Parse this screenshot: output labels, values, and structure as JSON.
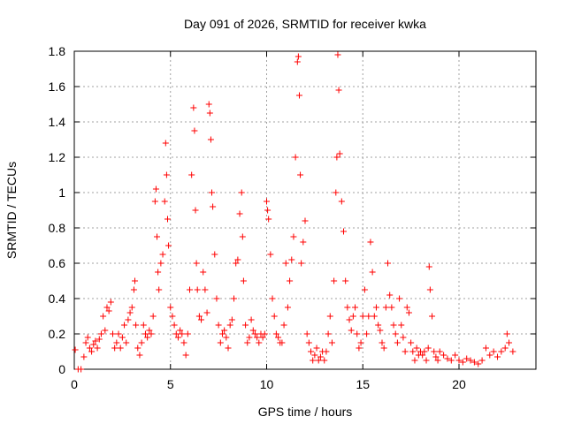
{
  "chart_data": {
    "type": "scatter",
    "title": "Day 091 of 2026, SRMTID for receiver kwka",
    "xlabel": "GPS time / hours",
    "ylabel": "SRMTID / TECUs",
    "xlim": [
      0,
      24
    ],
    "ylim": [
      0,
      1.8
    ],
    "xticks": [
      0,
      5,
      10,
      15,
      20
    ],
    "xtick_labels": [
      "0",
      "5",
      "10",
      "15",
      "20"
    ],
    "yticks": [
      0,
      0.2,
      0.4,
      0.6,
      0.8,
      1.0,
      1.2,
      1.4,
      1.6,
      1.8
    ],
    "ytick_labels": [
      "0",
      "0.2",
      "0.4",
      "0.6",
      "0.8",
      "1",
      "1.2",
      "1.4",
      "1.6",
      "1.8"
    ],
    "grid": true,
    "marker": "+",
    "color": "#ff0000",
    "series": [
      {
        "name": "SRMTID",
        "x": [
          0.05,
          0.2,
          0.35,
          0.5,
          0.6,
          0.7,
          0.8,
          0.9,
          1.0,
          1.1,
          1.2,
          1.3,
          1.4,
          1.5,
          1.6,
          1.7,
          1.8,
          1.9,
          2.0,
          2.1,
          2.2,
          2.3,
          2.4,
          2.5,
          2.6,
          2.7,
          2.8,
          2.9,
          3.0,
          3.1,
          3.15,
          3.2,
          3.3,
          3.4,
          3.5,
          3.6,
          3.7,
          3.8,
          3.9,
          4.0,
          4.1,
          4.2,
          4.25,
          4.3,
          4.35,
          4.4,
          4.5,
          4.6,
          4.7,
          4.75,
          4.8,
          4.85,
          4.9,
          5.0,
          5.1,
          5.2,
          5.3,
          5.4,
          5.5,
          5.6,
          5.7,
          5.8,
          5.9,
          6.0,
          6.1,
          6.2,
          6.25,
          6.3,
          6.35,
          6.4,
          6.5,
          6.6,
          6.7,
          6.8,
          6.9,
          7.0,
          7.05,
          7.1,
          7.15,
          7.2,
          7.3,
          7.4,
          7.5,
          7.6,
          7.7,
          7.8,
          7.9,
          8.0,
          8.1,
          8.2,
          8.3,
          8.4,
          8.5,
          8.6,
          8.7,
          8.75,
          8.8,
          8.9,
          9.0,
          9.1,
          9.2,
          9.3,
          9.4,
          9.5,
          9.6,
          9.7,
          9.8,
          9.9,
          10.0,
          10.05,
          10.1,
          10.2,
          10.3,
          10.4,
          10.5,
          10.6,
          10.7,
          10.8,
          10.9,
          11.0,
          11.1,
          11.2,
          11.3,
          11.4,
          11.5,
          11.6,
          11.65,
          11.7,
          11.75,
          11.8,
          11.9,
          12.0,
          12.1,
          12.2,
          12.3,
          12.4,
          12.5,
          12.6,
          12.7,
          12.8,
          12.9,
          13.0,
          13.1,
          13.2,
          13.3,
          13.4,
          13.5,
          13.6,
          13.65,
          13.7,
          13.75,
          13.8,
          13.9,
          14.0,
          14.1,
          14.2,
          14.3,
          14.4,
          14.5,
          14.6,
          14.7,
          14.8,
          14.9,
          15.0,
          15.1,
          15.2,
          15.3,
          15.4,
          15.5,
          15.6,
          15.7,
          15.8,
          15.9,
          16.0,
          16.1,
          16.2,
          16.3,
          16.4,
          16.5,
          16.6,
          16.7,
          16.8,
          16.9,
          17.0,
          17.1,
          17.2,
          17.3,
          17.4,
          17.5,
          17.6,
          17.7,
          17.8,
          17.9,
          18.0,
          18.1,
          18.2,
          18.3,
          18.4,
          18.45,
          18.5,
          18.6,
          18.7,
          18.8,
          18.9,
          19.0,
          19.2,
          19.4,
          19.6,
          19.8,
          20.0,
          20.2,
          20.4,
          20.6,
          20.8,
          21.0,
          21.2,
          21.4,
          21.6,
          21.8,
          22.0,
          22.2,
          22.4,
          22.5,
          22.6,
          22.8
        ],
        "y": [
          0.11,
          0.0,
          0.0,
          0.07,
          0.15,
          0.18,
          0.12,
          0.1,
          0.14,
          0.16,
          0.12,
          0.17,
          0.2,
          0.3,
          0.22,
          0.35,
          0.33,
          0.38,
          0.2,
          0.12,
          0.15,
          0.2,
          0.12,
          0.18,
          0.25,
          0.15,
          0.28,
          0.32,
          0.35,
          0.45,
          0.5,
          0.25,
          0.12,
          0.08,
          0.15,
          0.25,
          0.2,
          0.18,
          0.22,
          0.2,
          0.3,
          0.95,
          1.02,
          0.75,
          0.55,
          0.45,
          0.6,
          0.65,
          0.95,
          1.28,
          1.1,
          0.85,
          0.7,
          0.35,
          0.3,
          0.25,
          0.2,
          0.18,
          0.22,
          0.2,
          0.15,
          0.08,
          0.2,
          0.45,
          1.1,
          1.48,
          1.35,
          0.9,
          0.6,
          0.45,
          0.3,
          0.28,
          0.55,
          0.45,
          0.32,
          1.5,
          1.45,
          1.3,
          1.0,
          0.92,
          0.65,
          0.4,
          0.25,
          0.15,
          0.2,
          0.22,
          0.18,
          0.12,
          0.25,
          0.28,
          0.4,
          0.6,
          0.62,
          0.88,
          1.0,
          0.75,
          0.5,
          0.25,
          0.15,
          0.18,
          0.28,
          0.22,
          0.2,
          0.18,
          0.15,
          0.2,
          0.18,
          0.2,
          0.95,
          0.9,
          0.85,
          0.65,
          0.4,
          0.3,
          0.2,
          0.18,
          0.15,
          0.15,
          0.25,
          0.6,
          0.35,
          0.5,
          0.62,
          0.75,
          1.2,
          1.74,
          1.77,
          1.55,
          1.1,
          0.6,
          0.72,
          0.84,
          0.2,
          0.15,
          0.1,
          0.05,
          0.08,
          0.12,
          0.05,
          0.07,
          0.1,
          0.05,
          0.1,
          0.2,
          0.3,
          0.15,
          0.5,
          1.0,
          1.2,
          1.78,
          1.58,
          1.22,
          0.95,
          0.78,
          0.5,
          0.35,
          0.28,
          0.22,
          0.3,
          0.35,
          0.2,
          0.12,
          0.15,
          0.3,
          0.45,
          0.2,
          0.3,
          0.72,
          0.55,
          0.3,
          0.35,
          0.25,
          0.22,
          0.15,
          0.12,
          0.35,
          0.6,
          0.42,
          0.35,
          0.25,
          0.2,
          0.15,
          0.4,
          0.25,
          0.18,
          0.1,
          0.35,
          0.32,
          0.15,
          0.1,
          0.05,
          0.12,
          0.08,
          0.1,
          0.08,
          0.1,
          0.05,
          0.12,
          0.58,
          0.45,
          0.3,
          0.1,
          0.07,
          0.05,
          0.1,
          0.08,
          0.06,
          0.05,
          0.08,
          0.05,
          0.04,
          0.06,
          0.05,
          0.04,
          0.03,
          0.05,
          0.12,
          0.08,
          0.1,
          0.07,
          0.1,
          0.12,
          0.2,
          0.15,
          0.1
        ]
      }
    ]
  }
}
